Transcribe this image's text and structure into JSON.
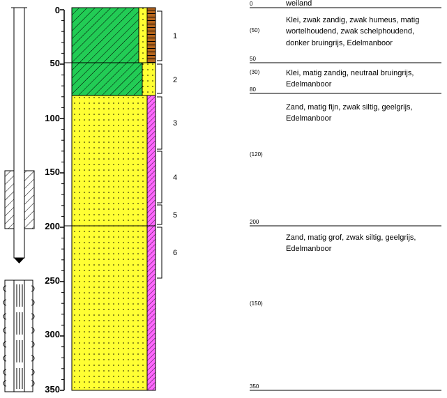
{
  "header": {
    "top_depth_marker": "0",
    "top_description": "weiland"
  },
  "depth_axis": {
    "unit_note": "",
    "ticks": [
      "0",
      "50",
      "100",
      "150",
      "200",
      "250",
      "300",
      "350"
    ]
  },
  "samples": [
    {
      "label": "1"
    },
    {
      "label": "2"
    },
    {
      "label": "3"
    },
    {
      "label": "4"
    },
    {
      "label": "5"
    },
    {
      "label": "6"
    }
  ],
  "layers": [
    {
      "top_label": "0",
      "thickness": "(50)",
      "bottom_label": "50",
      "lines": [
        "Klei, zwak zandig, zwak humeus, matig",
        "wortelhoudend, zwak schelphoudend,",
        "donker bruingrijs, Edelmanboor"
      ]
    },
    {
      "top_label": "50",
      "thickness": "(30)",
      "bottom_label": "80",
      "lines": [
        "Klei, matig zandig, neutraal bruingrijs,",
        "Edelmanboor"
      ]
    },
    {
      "top_label": "80",
      "thickness": "(120)",
      "bottom_label": "200",
      "lines": [
        "Zand, matig fijn, zwak siltig, geelgrijs,",
        "Edelmanboor"
      ]
    },
    {
      "top_label": "200",
      "thickness": "(150)",
      "bottom_label": "350",
      "lines": [
        "Zand, matig grof, zwak siltig, geelgrijs,",
        "Edelmanboor"
      ]
    }
  ],
  "colors": {
    "clay_green": "#22cc55",
    "sand_yellow": "#ffff33",
    "organic_brown": "#b5651d",
    "shell_pink": "#ff66ff"
  }
}
